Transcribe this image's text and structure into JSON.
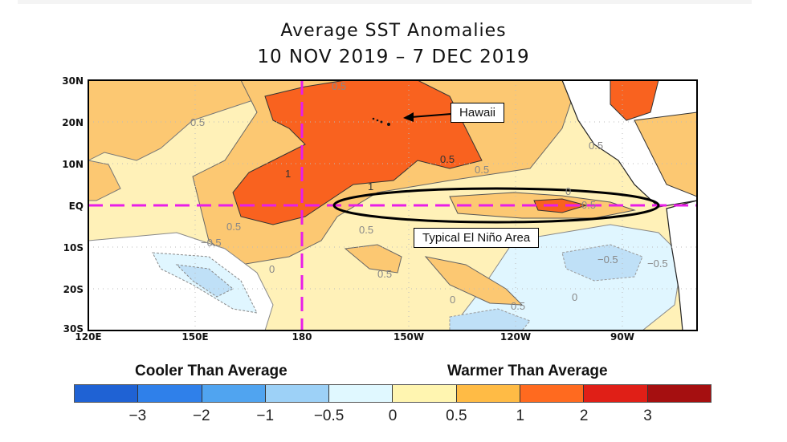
{
  "title": {
    "line1": "Average SST Anomalies",
    "line2": "10 NOV 2019 – 7 DEC 2019"
  },
  "map": {
    "lat_labels": [
      "30N",
      "20N",
      "10N",
      "EQ",
      "10S",
      "20S",
      "30S"
    ],
    "lon_labels": [
      "120E",
      "150E",
      "180",
      "150W",
      "120W",
      "90W"
    ],
    "reference_lines": {
      "equator": "EQ",
      "dateline": "180",
      "color": "#e81ee8"
    },
    "contour_labels": [
      "0.5",
      "1",
      "0.5",
      "1",
      "0.5",
      "0.5",
      "0.5",
      "0",
      "0.5",
      "−0.5",
      "0",
      "0.5",
      "0.5",
      "0",
      "0.5",
      "−0.5",
      "−0.5",
      "0"
    ],
    "annotations": {
      "hawaii": "Hawaii",
      "el_nino_area": "Typical El Niño Area"
    }
  },
  "legend": {
    "cooler_label": "Cooler Than Average",
    "warmer_label": "Warmer Than Average",
    "colors": [
      "#1f62d4",
      "#2f80ea",
      "#50a4f0",
      "#9dd1f7",
      "#e0f8ff",
      "#fff5b0",
      "#ffbb45",
      "#ff6a1f",
      "#e01f17",
      "#a50f10"
    ],
    "ticks": [
      "−3",
      "−2",
      "−1",
      "−0.5",
      "0",
      "0.5",
      "1",
      "2",
      "3"
    ]
  }
}
